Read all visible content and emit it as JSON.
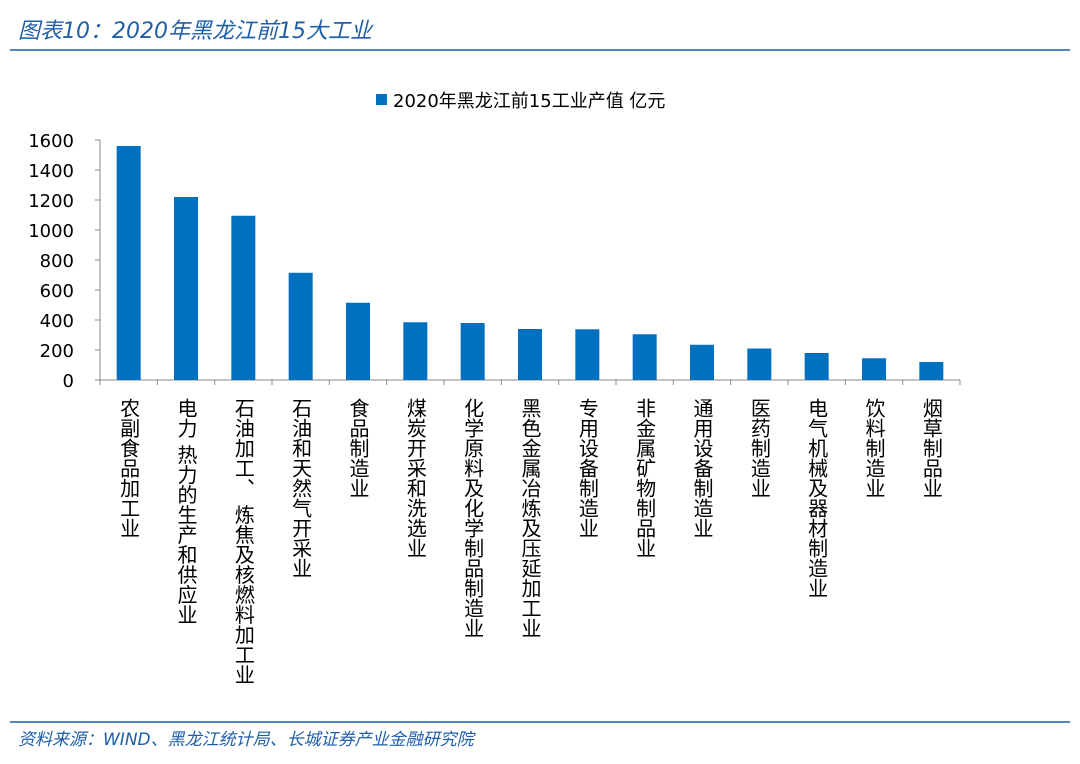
{
  "header": {
    "title": "图表10：2020年黑龙江前15大工业"
  },
  "chart_data": {
    "type": "bar",
    "categories": [
      "农副食品加工业",
      "电力  热力的生产和供应业",
      "石油加工、 炼焦及核燃料加工业",
      "石油和天然气开采业",
      "食品制造业",
      "煤炭开采和洗选业",
      "化学原料及化学制品制造业",
      "黑色金属冶炼及压延加工业",
      "专用设备制造业",
      "非金属矿物制品业",
      "通用设备制造业",
      "医药制造业",
      "电气机械及器材制造业",
      "饮料制造业",
      "烟草制品业"
    ],
    "series": [
      {
        "name": "2020年黑龙江前15工业产值 亿元",
        "color": "#0070c0",
        "values": [
          1560,
          1220,
          1095,
          715,
          515,
          385,
          380,
          340,
          338,
          305,
          235,
          210,
          180,
          145,
          120
        ]
      }
    ],
    "ylim": [
      0,
      1600
    ],
    "yticks": [
      0,
      200,
      400,
      600,
      800,
      1000,
      1200,
      1400,
      1600
    ],
    "legend": "top"
  },
  "footer": {
    "source": "资料来源：WIND、黑龙江统计局、长城证券产业金融研究院"
  }
}
